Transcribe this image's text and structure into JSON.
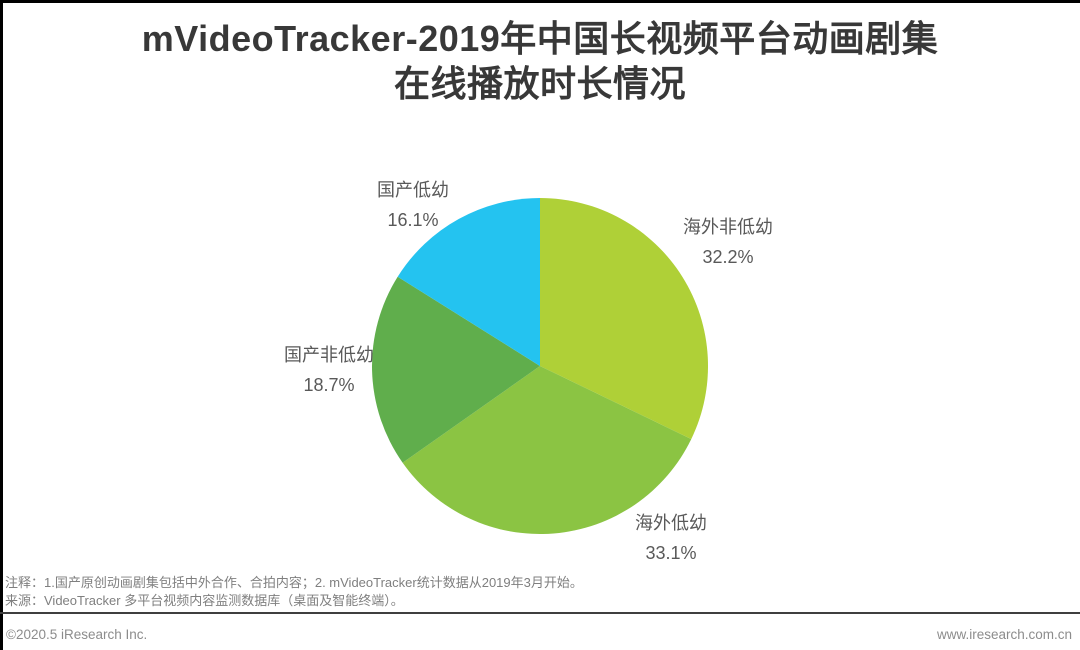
{
  "page": {
    "title_line1": "mVideoTracker-2019年中国长视频平台动画剧集",
    "title_line2": "在线播放时长情况"
  },
  "chart_data": {
    "type": "pie",
    "title": "mVideoTracker-2019年中国长视频平台动画剧集在线播放时长情况",
    "unit": "%",
    "start_angle": "top",
    "direction": "clockwise",
    "segments": [
      {
        "label": "海外非低幼",
        "value": 32.2,
        "display": "32.2%",
        "color": "#afd037"
      },
      {
        "label": "海外低幼",
        "value": 33.1,
        "display": "33.1%",
        "color": "#8bc443"
      },
      {
        "label": "国产非低幼",
        "value": 18.7,
        "display": "18.7%",
        "color": "#60ae4c"
      },
      {
        "label": "国产低幼",
        "value": 16.1,
        "display": "16.1%",
        "color": "#24c3f0"
      }
    ]
  },
  "notes": {
    "line1": "注释：1.国产原创动画剧集包括中外合作、合拍内容；2. mVideoTracker统计数据从2019年3月开始。",
    "line2": "来源：VideoTracker 多平台视频内容监测数据库（桌面及智能终端）。"
  },
  "footer": {
    "copyright": "©2020.5 iResearch Inc.",
    "website": "www.iresearch.com.cn"
  }
}
